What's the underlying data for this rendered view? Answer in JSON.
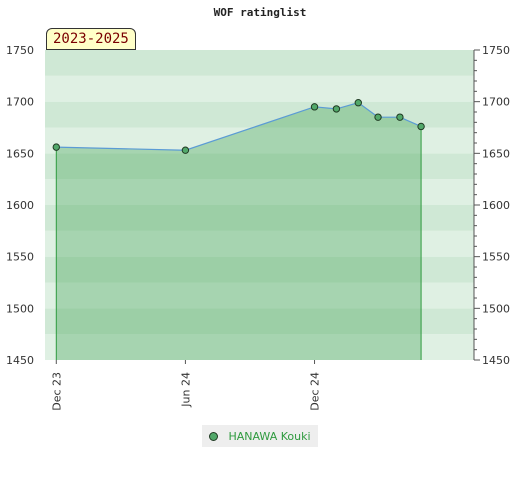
{
  "chart_data": {
    "type": "area",
    "title": "WOF ratinglist",
    "period_label": "2023-2025",
    "ylim": [
      1450,
      1750
    ],
    "yticks": [
      1450,
      1500,
      1550,
      1600,
      1650,
      1700,
      1750
    ],
    "xticks": [
      {
        "label": "Dec 23",
        "date": "2023-12-01"
      },
      {
        "label": "Jun 24",
        "date": "2024-06-01"
      },
      {
        "label": "Dec 24",
        "date": "2024-12-01"
      }
    ],
    "xlim": [
      "2023-11-15",
      "2025-07-15"
    ],
    "series": [
      {
        "name": "HANAWA Kouki",
        "color": "#52a86a",
        "line_color": "#5b9bd5",
        "points": [
          {
            "date": "2023-12-01",
            "value": 1656
          },
          {
            "date": "2024-06-01",
            "value": 1653
          },
          {
            "date": "2024-12-01",
            "value": 1695
          },
          {
            "date": "2025-01-01",
            "value": 1693
          },
          {
            "date": "2025-02-01",
            "value": 1699
          },
          {
            "date": "2025-03-01",
            "value": 1685
          },
          {
            "date": "2025-04-01",
            "value": 1685
          },
          {
            "date": "2025-05-01",
            "value": 1676
          }
        ]
      }
    ],
    "legend_position": "bottom",
    "grid": true
  }
}
